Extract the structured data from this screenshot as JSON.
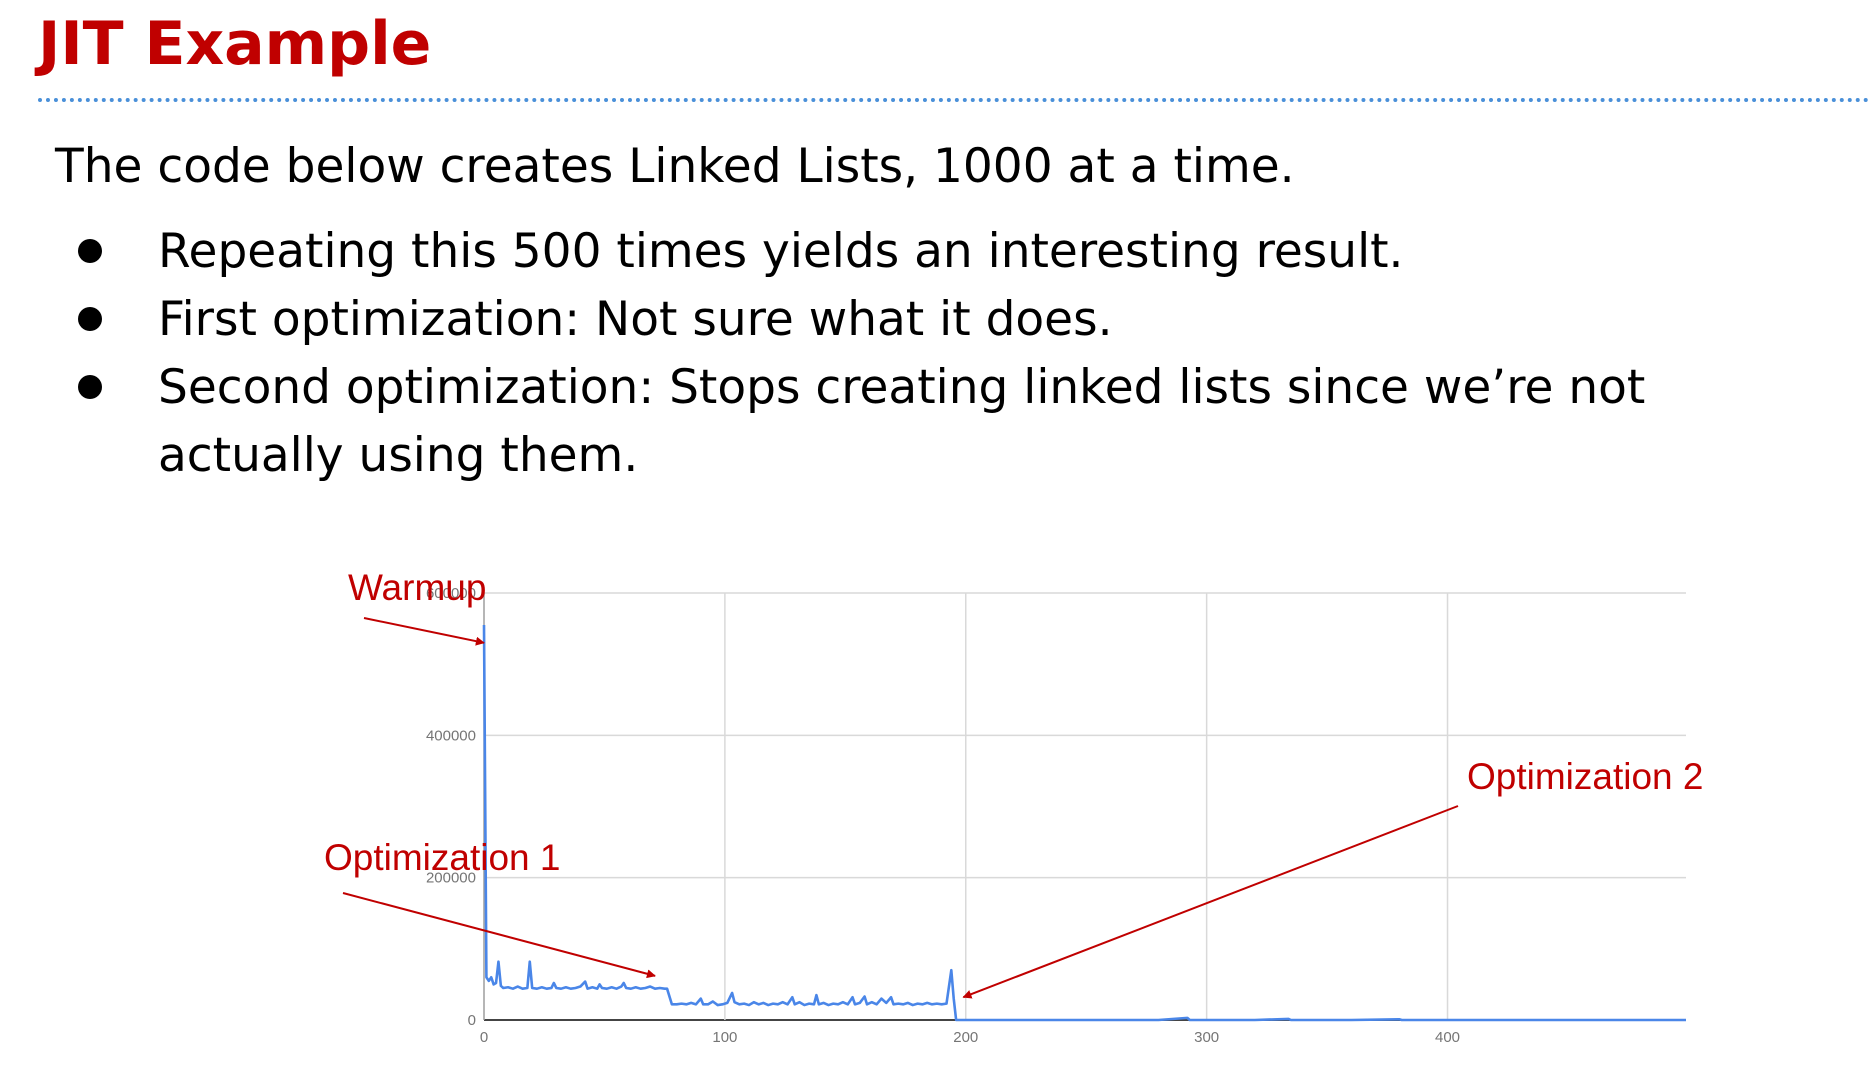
{
  "slide": {
    "title": "JIT Example",
    "intro": "The code below creates Linked Lists, 1000 at a time.",
    "bullets": [
      "Repeating this 500 times yields an interesting result.",
      "First optimization: Not sure what it does.",
      "Second optimization: Stops creating linked lists since we’re not actually using them."
    ]
  },
  "colors": {
    "title": "#c00000",
    "rule": "#4a90d9",
    "series": "#4a86e8",
    "annotation": "#c00000",
    "grid": "#d9d9d9",
    "tick_text": "#757575"
  },
  "chart_data": {
    "type": "line",
    "title": "",
    "xlabel": "",
    "ylabel": "",
    "xlim": [
      0,
      499
    ],
    "ylim": [
      0,
      600000
    ],
    "x_ticks": [
      0,
      100,
      200,
      300,
      400
    ],
    "y_ticks": [
      0,
      200000,
      400000,
      600000
    ],
    "x_tick_labels": [
      "0",
      "100",
      "200",
      "300",
      "400"
    ],
    "y_tick_labels": [
      "0",
      "200000",
      "400000",
      "600000"
    ],
    "grid": true,
    "legend": "none",
    "series": [
      {
        "points": [
          [
            0,
            555000
          ],
          [
            1,
            60000
          ],
          [
            2,
            55000
          ],
          [
            3,
            60000
          ],
          [
            4,
            50000
          ],
          [
            5,
            52000
          ],
          [
            6,
            82000
          ],
          [
            7,
            48000
          ],
          [
            8,
            45000
          ],
          [
            10,
            46000
          ],
          [
            12,
            44000
          ],
          [
            14,
            47000
          ],
          [
            16,
            44000
          ],
          [
            18,
            45000
          ],
          [
            19,
            82000
          ],
          [
            20,
            45000
          ],
          [
            22,
            44000
          ],
          [
            24,
            46000
          ],
          [
            26,
            44000
          ],
          [
            28,
            45000
          ],
          [
            29,
            52000
          ],
          [
            30,
            45000
          ],
          [
            32,
            44000
          ],
          [
            34,
            46000
          ],
          [
            36,
            44000
          ],
          [
            38,
            45000
          ],
          [
            40,
            47000
          ],
          [
            42,
            54000
          ],
          [
            43,
            44000
          ],
          [
            45,
            46000
          ],
          [
            47,
            44000
          ],
          [
            48,
            50000
          ],
          [
            49,
            45000
          ],
          [
            51,
            44000
          ],
          [
            53,
            46000
          ],
          [
            55,
            44000
          ],
          [
            57,
            47000
          ],
          [
            58,
            52000
          ],
          [
            59,
            45000
          ],
          [
            61,
            44000
          ],
          [
            63,
            46000
          ],
          [
            65,
            44000
          ],
          [
            67,
            45000
          ],
          [
            69,
            47000
          ],
          [
            71,
            44000
          ],
          [
            73,
            45000
          ],
          [
            75,
            44000
          ],
          [
            76,
            44000
          ],
          [
            78,
            22000
          ],
          [
            80,
            22000
          ],
          [
            82,
            23000
          ],
          [
            84,
            22000
          ],
          [
            86,
            24000
          ],
          [
            88,
            22000
          ],
          [
            90,
            30000
          ],
          [
            91,
            22000
          ],
          [
            93,
            22000
          ],
          [
            95,
            26000
          ],
          [
            97,
            21000
          ],
          [
            99,
            22000
          ],
          [
            101,
            24000
          ],
          [
            103,
            38000
          ],
          [
            104,
            25000
          ],
          [
            106,
            22000
          ],
          [
            108,
            23000
          ],
          [
            110,
            21000
          ],
          [
            112,
            25000
          ],
          [
            114,
            22000
          ],
          [
            116,
            24000
          ],
          [
            118,
            21000
          ],
          [
            120,
            23000
          ],
          [
            122,
            22000
          ],
          [
            124,
            25000
          ],
          [
            126,
            22000
          ],
          [
            128,
            32000
          ],
          [
            129,
            22000
          ],
          [
            131,
            25000
          ],
          [
            133,
            21000
          ],
          [
            135,
            23000
          ],
          [
            137,
            22000
          ],
          [
            138,
            35000
          ],
          [
            139,
            22000
          ],
          [
            141,
            24000
          ],
          [
            143,
            21000
          ],
          [
            145,
            23000
          ],
          [
            147,
            22000
          ],
          [
            149,
            25000
          ],
          [
            151,
            22000
          ],
          [
            153,
            32000
          ],
          [
            154,
            22000
          ],
          [
            156,
            24000
          ],
          [
            158,
            33000
          ],
          [
            159,
            22000
          ],
          [
            161,
            25000
          ],
          [
            163,
            22000
          ],
          [
            165,
            30000
          ],
          [
            167,
            24000
          ],
          [
            169,
            32000
          ],
          [
            170,
            22000
          ],
          [
            172,
            23000
          ],
          [
            174,
            22000
          ],
          [
            176,
            24000
          ],
          [
            178,
            21000
          ],
          [
            180,
            23000
          ],
          [
            182,
            22000
          ],
          [
            184,
            24000
          ],
          [
            186,
            22000
          ],
          [
            188,
            23000
          ],
          [
            190,
            22000
          ],
          [
            192,
            23000
          ],
          [
            194,
            70000
          ],
          [
            195,
            30000
          ],
          [
            196,
            0
          ],
          [
            200,
            0
          ],
          [
            220,
            0
          ],
          [
            250,
            0
          ],
          [
            280,
            0
          ],
          [
            292,
            3000
          ],
          [
            293,
            0
          ],
          [
            320,
            0
          ],
          [
            334,
            1500
          ],
          [
            335,
            0
          ],
          [
            360,
            0
          ],
          [
            380,
            1000
          ],
          [
            381,
            0
          ],
          [
            420,
            0
          ],
          [
            460,
            0
          ],
          [
            499,
            0
          ]
        ]
      }
    ],
    "annotations": [
      {
        "text": "Warmup",
        "target": [
          0,
          530000
        ]
      },
      {
        "text": "Optimization 1",
        "target": [
          71,
          62000
        ]
      },
      {
        "text": "Optimization 2",
        "target": [
          199,
          32000
        ]
      }
    ]
  }
}
